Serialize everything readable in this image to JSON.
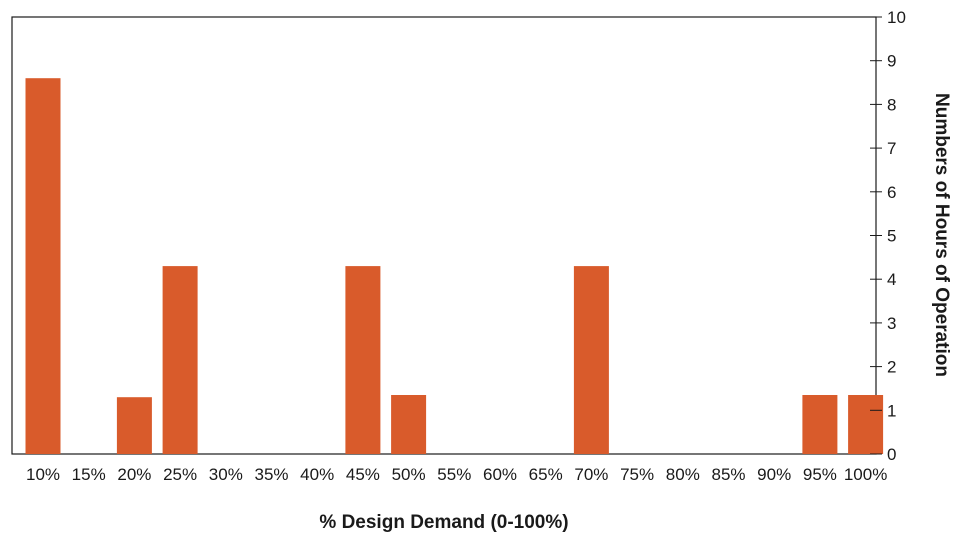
{
  "chart_data": {
    "type": "bar",
    "title": "",
    "xlabel": "% Design Demand (0-100%)",
    "ylabel": "Numbers of Hours of Operation",
    "categories": [
      "10%",
      "15%",
      "20%",
      "25%",
      "30%",
      "35%",
      "40%",
      "45%",
      "50%",
      "55%",
      "60%",
      "65%",
      "70%",
      "75%",
      "80%",
      "85%",
      "90%",
      "95%",
      "100%"
    ],
    "values": [
      8.6,
      0,
      1.3,
      4.3,
      0,
      0,
      0,
      4.3,
      1.35,
      0,
      0,
      0,
      4.3,
      0,
      0,
      0,
      0,
      1.35,
      1.35
    ],
    "ylim": [
      0,
      10
    ],
    "yticks": [
      0,
      1,
      2,
      3,
      4,
      5,
      6,
      7,
      8,
      9,
      10
    ],
    "y_axis_side": "right",
    "grid": false,
    "legend": "none",
    "bar_color": "#d95b2b"
  }
}
